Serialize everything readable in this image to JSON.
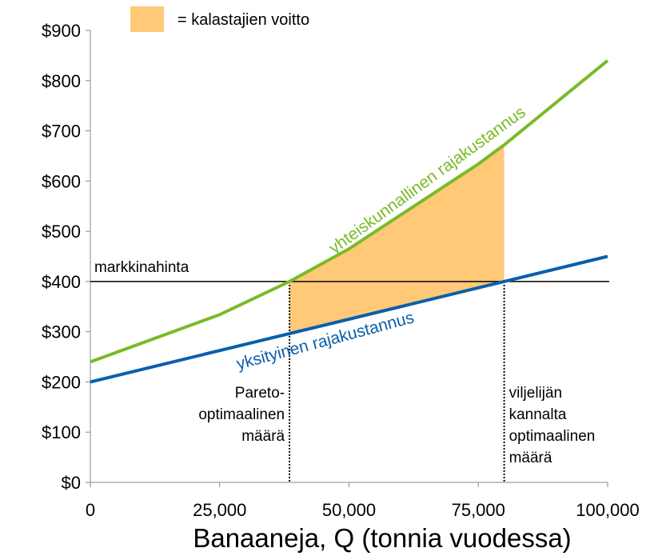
{
  "chart_data": {
    "type": "line",
    "legend": "= kalastajien voitto",
    "legend_color": "#ffc978",
    "xlabel": "Banaaneja, Q (tonnia vuodessa)",
    "xlim": [
      0,
      100000
    ],
    "ylim": [
      0,
      900
    ],
    "xticks": [
      0,
      {
        "value": 25000,
        "label": "25,000"
      },
      {
        "value": 50000,
        "label": "50,000"
      },
      {
        "value": 75000,
        "label": "75,000"
      },
      {
        "value": 100000,
        "label": "100,000"
      }
    ],
    "yticks": [
      {
        "value": 0,
        "label": "$0"
      },
      {
        "value": 100,
        "label": "$100"
      },
      {
        "value": 200,
        "label": "$200"
      },
      {
        "value": 300,
        "label": "$300"
      },
      {
        "value": 400,
        "label": "$400"
      },
      {
        "value": 500,
        "label": "$500"
      },
      {
        "value": 600,
        "label": "$600"
      },
      {
        "value": 700,
        "label": "$700"
      },
      {
        "value": 800,
        "label": "$800"
      },
      {
        "value": 900,
        "label": "$900"
      }
    ],
    "series": [
      {
        "name": "yhteiskunnallinen rajakustannus",
        "color": "#7aba28",
        "x": [
          0,
          25000,
          38500,
          50000,
          75000,
          80000,
          100000
        ],
        "values": [
          240,
          334,
          400,
          465,
          634,
          672,
          840
        ]
      },
      {
        "name": "yksityinen rajakustannus",
        "color": "#0a5fac",
        "x": [
          0,
          100000
        ],
        "values": [
          200,
          450
        ]
      }
    ],
    "market_price": {
      "label": "markkinahinta",
      "value": 400
    },
    "pareto_quantity": {
      "label": [
        "Pareto-",
        "optimaalinen",
        "määrä"
      ],
      "value": 38500
    },
    "private_quantity": {
      "label": [
        "viljelijän",
        "kannalta",
        "optimaalinen",
        "määrä"
      ],
      "value": 80000
    }
  }
}
